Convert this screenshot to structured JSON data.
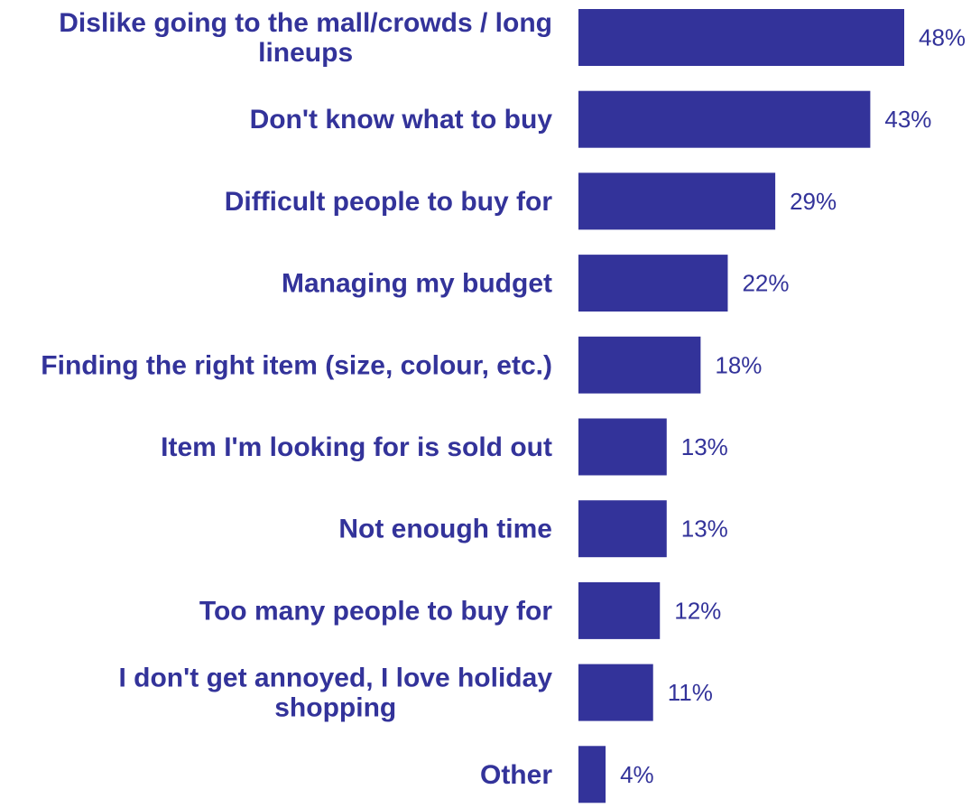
{
  "chart_data": {
    "type": "bar",
    "orientation": "horizontal",
    "categories": [
      "Dislike going to the mall/crowds / long lineups",
      "Don't know what to buy",
      "Difficult people to buy for",
      "Managing my budget",
      "Finding the right item (size, colour, etc.)",
      "Item I'm looking for is sold out",
      "Not enough time",
      "Too many people to buy for",
      "I don't get annoyed, I love holiday shopping",
      "Other"
    ],
    "values": [
      48,
      43,
      29,
      22,
      18,
      13,
      13,
      12,
      11,
      4
    ],
    "value_labels": [
      "48%",
      "43%",
      "29%",
      "22%",
      "18%",
      "13%",
      "13%",
      "12%",
      "11%",
      "4%"
    ],
    "bar_color": "#33339a",
    "text_color": "#33339a",
    "title": "",
    "xlabel": "",
    "ylabel": "",
    "xlim": [
      0,
      48
    ],
    "grid": false,
    "legend": "none"
  }
}
